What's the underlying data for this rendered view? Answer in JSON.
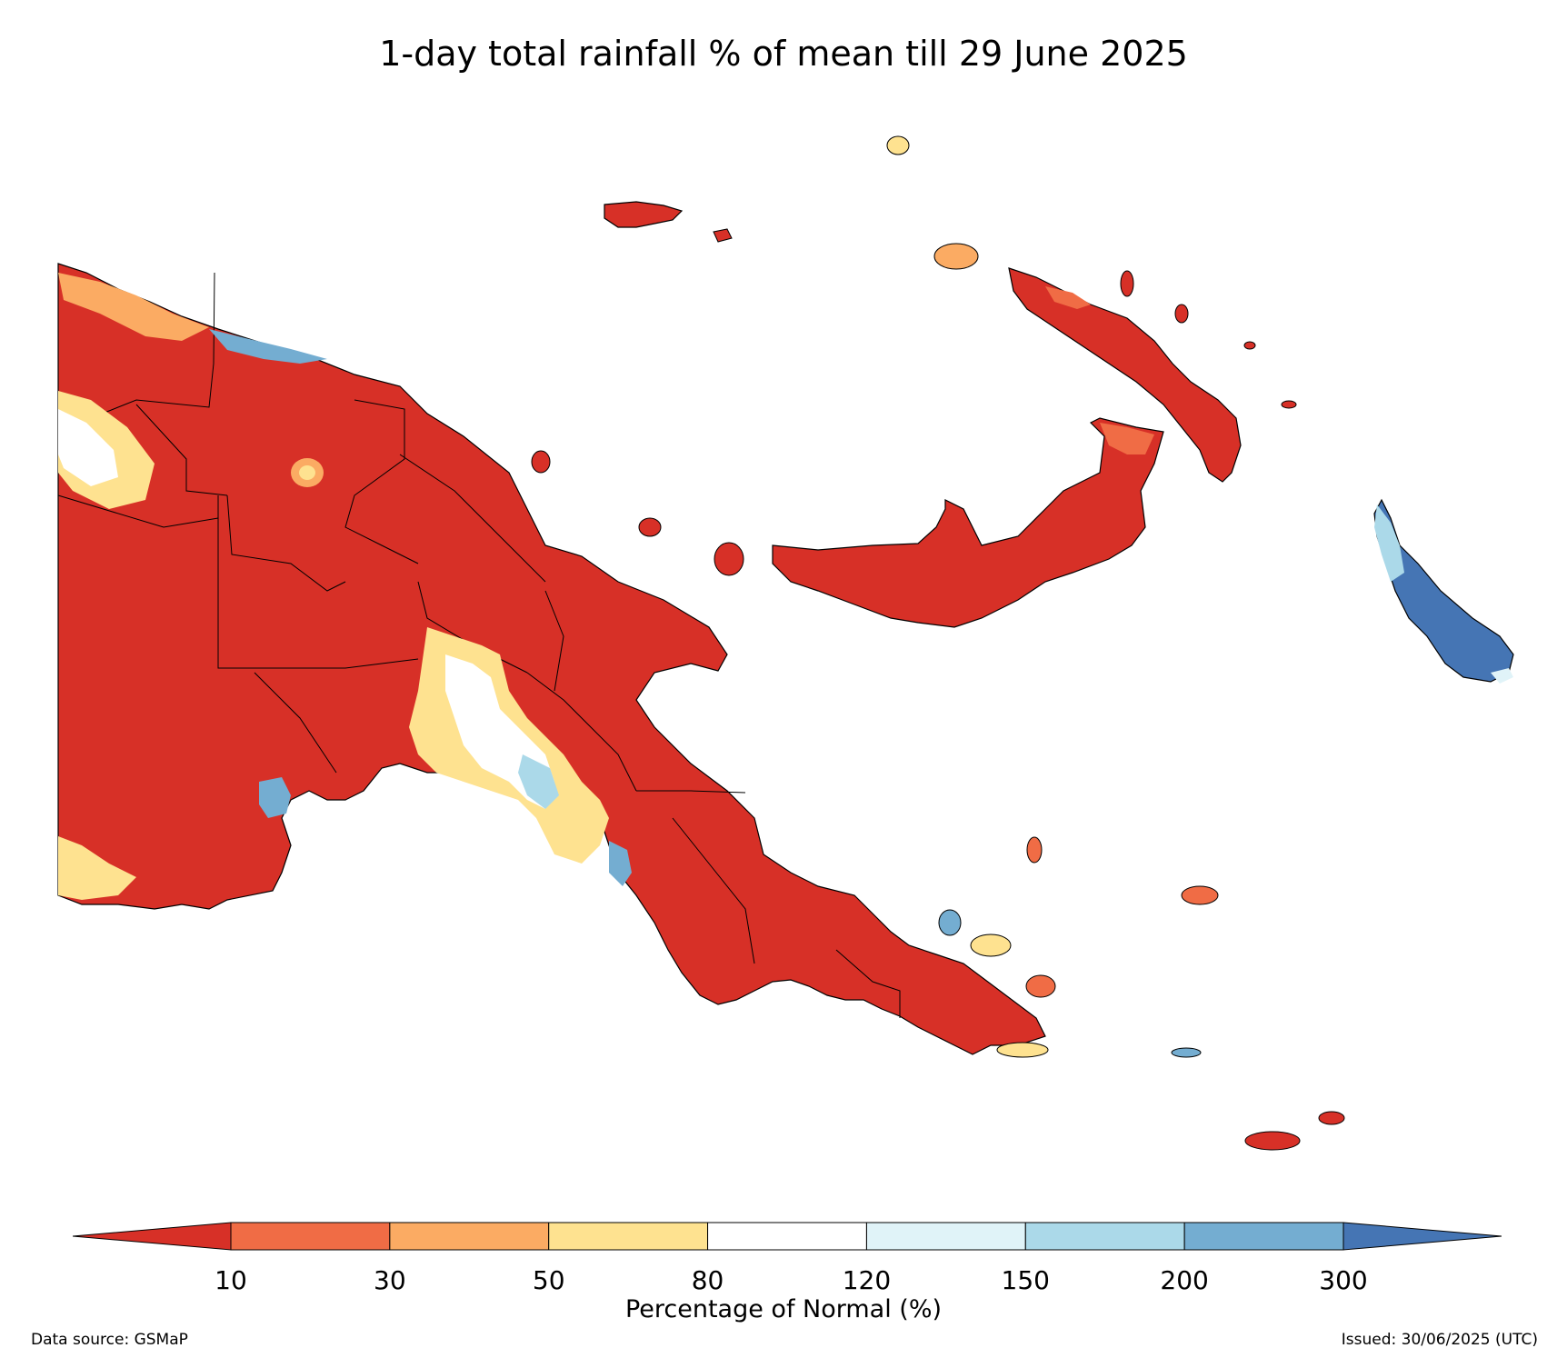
{
  "title": "1-day total rainfall % of mean till 29 June 2025",
  "colorbar": {
    "label": "Percentage of Normal (%)",
    "ticks": [
      "10",
      "30",
      "50",
      "80",
      "120",
      "150",
      "200",
      "300"
    ],
    "bins": [
      {
        "range": "<10",
        "color": "#d73027"
      },
      {
        "range": "10-30",
        "color": "#f06c45"
      },
      {
        "range": "30-50",
        "color": "#fbab63"
      },
      {
        "range": "50-80",
        "color": "#fee290"
      },
      {
        "range": "80-120",
        "color": "#ffffff"
      },
      {
        "range": "120-150",
        "color": "#e0f3f8"
      },
      {
        "range": "150-200",
        "color": "#abd9e9"
      },
      {
        "range": "200-300",
        "color": "#74add1"
      },
      {
        "range": ">300",
        "color": "#4575b4"
      }
    ]
  },
  "footer": {
    "source": "Data source: GSMaP",
    "issued": "Issued: 30/06/2025 (UTC)"
  },
  "map": {
    "region": "Papua New Guinea",
    "dominant_category": "<10",
    "colors": {
      "land": "#d73027",
      "border": "#000000",
      "ocean": "#ffffff"
    }
  }
}
